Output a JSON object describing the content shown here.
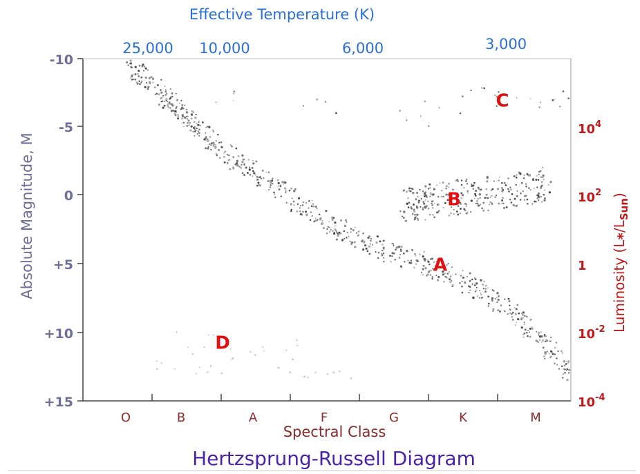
{
  "chart_data": {
    "type": "scatter",
    "title": "Hertzsprung-Russell Diagram",
    "top_axis": {
      "label": "Effective Temperature (K)",
      "ticks": [
        "25,000",
        "10,000",
        "6,000",
        "3,000"
      ]
    },
    "left_axis": {
      "label": "Absolute Magnitude, M",
      "ticks": [
        "-10",
        "-5",
        "0",
        "+5",
        "+10",
        "+15"
      ],
      "ylim": [
        -10,
        15
      ],
      "inverted": true
    },
    "right_axis": {
      "label_prefix": "Luminosity (L",
      "label_star_sub": "*",
      "label_mid": "/L",
      "label_sun_sub": "Sun",
      "label_suffix": ")",
      "ticks": [
        {
          "base": "10",
          "exp": "4",
          "magnitude": -5
        },
        {
          "base": "10",
          "exp": "2",
          "magnitude": 0
        },
        {
          "base": "1",
          "exp": "",
          "magnitude": 5
        },
        {
          "base": "10",
          "exp": "-2",
          "magnitude": 10
        },
        {
          "base": "10",
          "exp": "-4",
          "magnitude": 15
        }
      ]
    },
    "bottom_axis": {
      "label": "Spectral Class",
      "categories": [
        "O",
        "B",
        "A",
        "F",
        "G",
        "K",
        "M"
      ]
    },
    "region_labels": [
      {
        "text": "A",
        "spectral": 4.55,
        "magnitude": 5.5
      },
      {
        "text": "B",
        "spectral": 4.75,
        "magnitude": 0.7
      },
      {
        "text": "C",
        "spectral": 5.45,
        "magnitude": -6.5
      },
      {
        "text": "D",
        "spectral": 1.4,
        "magnitude": 11.2
      }
    ],
    "series": [
      {
        "points": [
          [
            0.0,
            -9.3
          ],
          [
            0.3,
            -8.5
          ],
          [
            0.6,
            -7.0
          ],
          [
            0.8,
            -6.0
          ],
          [
            1.0,
            -5.0
          ],
          [
            1.3,
            -3.8
          ],
          [
            1.6,
            -2.5
          ],
          [
            2.0,
            -1.2
          ],
          [
            2.4,
            0.2
          ],
          [
            2.8,
            1.5
          ],
          [
            3.2,
            2.8
          ],
          [
            3.6,
            3.8
          ],
          [
            4.0,
            4.4
          ],
          [
            4.4,
            5.2
          ],
          [
            4.8,
            6.0
          ],
          [
            5.2,
            7.2
          ],
          [
            5.6,
            8.5
          ],
          [
            5.9,
            10.0
          ],
          [
            6.2,
            11.5
          ],
          [
            6.5,
            13.4
          ]
        ]
      },
      {
        "points": [
          [
            4.0,
            0.8
          ],
          [
            4.3,
            0.5
          ],
          [
            4.6,
            0.2
          ],
          [
            5.0,
            0.0
          ],
          [
            5.4,
            -0.3
          ],
          [
            5.8,
            -0.5
          ],
          [
            6.1,
            -0.8
          ]
        ]
      },
      {
        "points": [
          [
            4.1,
            -5.5
          ],
          [
            4.6,
            -6.5
          ],
          [
            5.1,
            -7.5
          ],
          [
            5.5,
            -7.0
          ],
          [
            6.0,
            -6.5
          ],
          [
            6.4,
            -7.0
          ],
          [
            1.4,
            -7.0
          ],
          [
            2.8,
            -6.5
          ]
        ]
      },
      {
        "points": [
          [
            0.7,
            12.0
          ],
          [
            1.2,
            12.3
          ],
          [
            1.8,
            11.8
          ],
          [
            2.4,
            12.5
          ],
          [
            3.0,
            12.8
          ],
          [
            1.0,
            10.5
          ],
          [
            2.2,
            11.0
          ]
        ]
      }
    ]
  }
}
